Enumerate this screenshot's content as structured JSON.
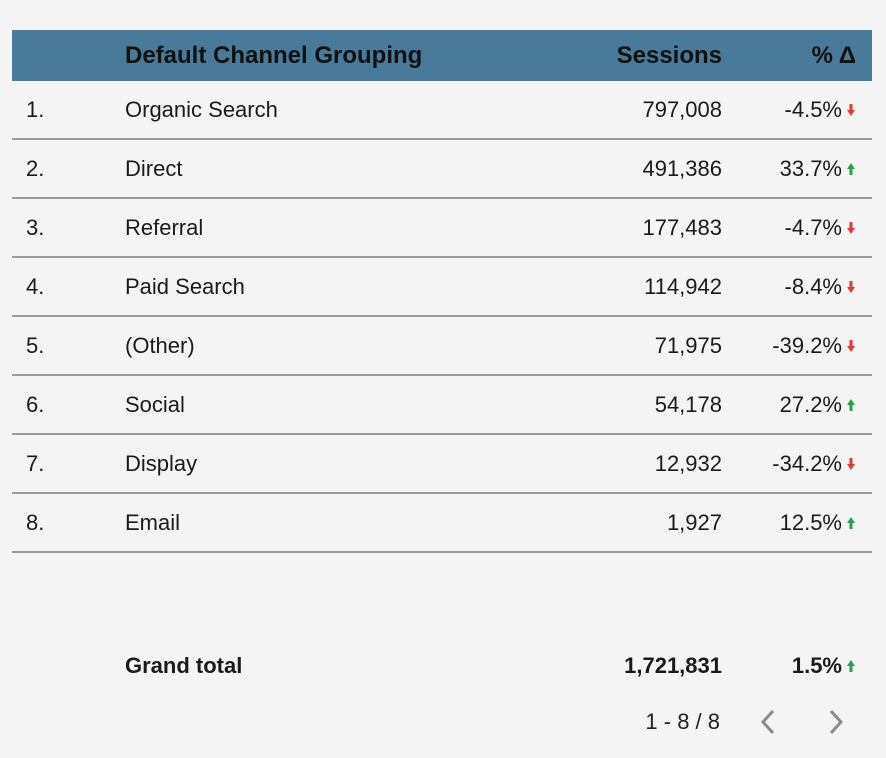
{
  "header": {
    "channel_label": "Default Channel Grouping",
    "sessions_label": "Sessions",
    "pct_label": "% Δ"
  },
  "rows": [
    {
      "idx": "1.",
      "channel": "Organic Search",
      "sessions": "797,008",
      "pct": "-4.5%",
      "dir": "down"
    },
    {
      "idx": "2.",
      "channel": "Direct",
      "sessions": "491,386",
      "pct": "33.7%",
      "dir": "up"
    },
    {
      "idx": "3.",
      "channel": "Referral",
      "sessions": "177,483",
      "pct": "-4.7%",
      "dir": "down"
    },
    {
      "idx": "4.",
      "channel": "Paid Search",
      "sessions": "114,942",
      "pct": "-8.4%",
      "dir": "down"
    },
    {
      "idx": "5.",
      "channel": "(Other)",
      "sessions": "71,975",
      "pct": "-39.2%",
      "dir": "down"
    },
    {
      "idx": "6.",
      "channel": "Social",
      "sessions": "54,178",
      "pct": "27.2%",
      "dir": "up"
    },
    {
      "idx": "7.",
      "channel": "Display",
      "sessions": "12,932",
      "pct": "-34.2%",
      "dir": "down"
    },
    {
      "idx": "8.",
      "channel": "Email",
      "sessions": "1,927",
      "pct": "12.5%",
      "dir": "up"
    }
  ],
  "total": {
    "label": "Grand total",
    "sessions": "1,721,831",
    "pct": "1.5%",
    "dir": "up"
  },
  "pager": {
    "range": "1 - 8 / 8",
    "prev_icon": "chevron-left-icon",
    "next_icon": "chevron-right-icon"
  },
  "colors": {
    "header_bg": "#4a7a99",
    "up": "#2e9e4e",
    "down": "#e53935"
  }
}
